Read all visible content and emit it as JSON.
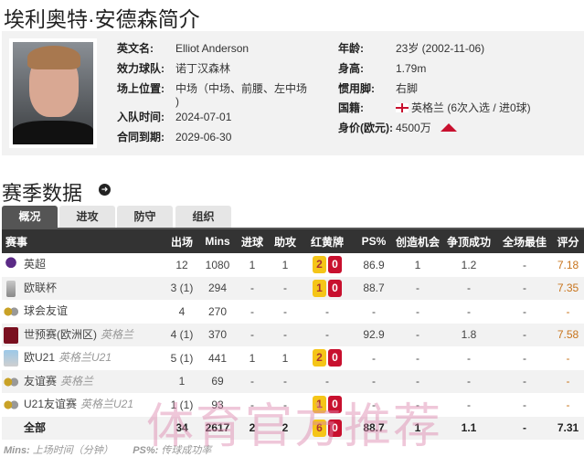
{
  "title": "埃利奥特·安德森简介",
  "profile": {
    "left": [
      {
        "label": "英文名:",
        "value": "Elliot Anderson"
      },
      {
        "label": "效力球队:",
        "value": "诺丁汉森林"
      },
      {
        "label": "场上位置:",
        "value": "中场（中场、前腰、左中场 )"
      },
      {
        "label": "入队时间:",
        "value": "2024-07-01"
      },
      {
        "label": "合同到期:",
        "value": "2029-06-30"
      }
    ],
    "right": [
      {
        "label": "年龄:",
        "value": "23岁  (2002-11-06)"
      },
      {
        "label": "身高:",
        "value": "1.79m"
      },
      {
        "label": "惯用脚:",
        "value": "右脚"
      },
      {
        "label": "国籍:",
        "value": "英格兰 (6次入选 / 进0球)"
      },
      {
        "label": "身价(欧元):",
        "value": "4500万"
      }
    ],
    "value_trend": "up",
    "trend_color": "#c8102e"
  },
  "section_title": "赛季数据",
  "tabs": [
    {
      "label": "概况",
      "active": true
    },
    {
      "label": "进攻"
    },
    {
      "label": "防守"
    },
    {
      "label": "组织"
    }
  ],
  "table": {
    "headers": [
      "赛事",
      "出场",
      "Mins",
      "进球",
      "助攻",
      "红黄牌",
      "PS%",
      "创造机会",
      "争顶成功",
      "全场最佳",
      "评分"
    ],
    "rows": [
      {
        "comp": "英超",
        "team": "",
        "icon": "premier-league-logo",
        "apps": "12",
        "mins": "1080",
        "goals": "1",
        "assists": "1",
        "yellow": "2",
        "red": "0",
        "ps": "86.9",
        "chances": "1",
        "aerial": "1.2",
        "motm": "-",
        "rating": "7.18"
      },
      {
        "comp": "欧联杯",
        "team": "",
        "icon": "europa-league-logo",
        "apps": "3 (1)",
        "mins": "294",
        "goals": "-",
        "assists": "-",
        "yellow": "1",
        "red": "0",
        "ps": "88.7",
        "chances": "-",
        "aerial": "-",
        "motm": "-",
        "rating": "7.35"
      },
      {
        "comp": "球会友谊",
        "team": "",
        "icon": "friendly-logo",
        "apps": "4",
        "mins": "270",
        "goals": "-",
        "assists": "-",
        "cards": "-",
        "ps": "-",
        "chances": "-",
        "aerial": "-",
        "motm": "-",
        "rating": "-"
      },
      {
        "comp": "世预赛(欧洲区)",
        "team": "英格兰",
        "icon": "wc-qualifier-logo",
        "apps": "4 (1)",
        "mins": "370",
        "goals": "-",
        "assists": "-",
        "cards": "-",
        "ps": "92.9",
        "chances": "-",
        "aerial": "1.8",
        "motm": "-",
        "rating": "7.58"
      },
      {
        "comp": "欧U21",
        "team": "英格兰U21",
        "icon": "euro-u21-logo",
        "apps": "5 (1)",
        "mins": "441",
        "goals": "1",
        "assists": "1",
        "yellow": "2",
        "red": "0",
        "ps": "-",
        "chances": "-",
        "aerial": "-",
        "motm": "-",
        "rating": "-"
      },
      {
        "comp": "友谊赛",
        "team": "英格兰",
        "icon": "friendly-logo",
        "apps": "1",
        "mins": "69",
        "goals": "-",
        "assists": "-",
        "cards": "-",
        "ps": "-",
        "chances": "-",
        "aerial": "-",
        "motm": "-",
        "rating": "-"
      },
      {
        "comp": "U21友谊赛",
        "team": "英格兰U21",
        "icon": "friendly-logo",
        "apps": "1 (1)",
        "mins": "93",
        "goals": "-",
        "assists": "-",
        "yellow": "1",
        "red": "0",
        "ps": "-",
        "chances": "-",
        "aerial": "-",
        "motm": "-",
        "rating": "-"
      },
      {
        "comp": "全部",
        "team": "",
        "icon": "",
        "apps": "34",
        "mins": "2617",
        "goals": "2",
        "assists": "2",
        "yellow": "6",
        "red": "0",
        "ps": "88.7",
        "chances": "1",
        "aerial": "1.1",
        "motm": "-",
        "rating": "7.31"
      }
    ]
  },
  "footer": {
    "mins_key": "Mins:",
    "mins_desc": "上场时间（分钟）",
    "ps_key": "PS%:",
    "ps_desc": "传球成功率"
  },
  "watermark": "体育官方推荐",
  "colors": {
    "rating": "#c8741c",
    "yellow_card": "#f5c518",
    "red_card": "#c8102e",
    "header_bg": "#333333"
  }
}
